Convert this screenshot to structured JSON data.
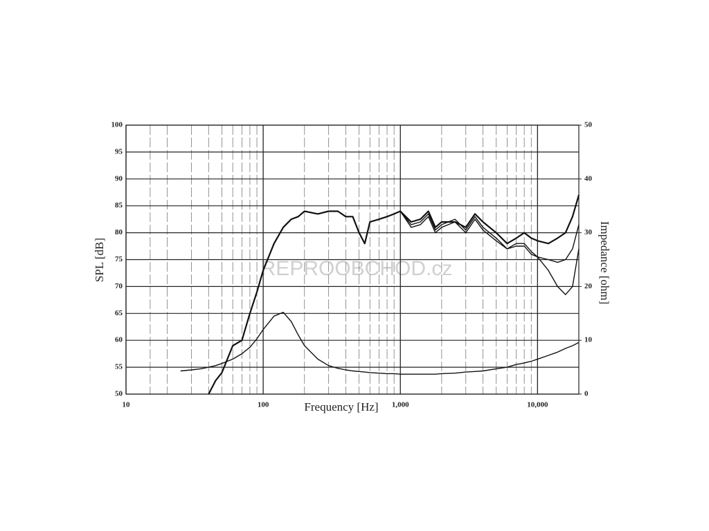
{
  "chart_data": {
    "type": "line",
    "x_label": "Frequency [Hz]",
    "y_label": "SPL [dB]",
    "y2_label": "Impedance [ohm]",
    "watermark": "REPROOBCHOD.cz",
    "xscale": "log",
    "grid": true,
    "xlim": [
      10,
      20000
    ],
    "xticks": [
      10,
      100,
      {
        "value": 1000,
        "label": "1,000"
      },
      {
        "value": 10000,
        "label": "10,000"
      }
    ],
    "x_minor_ticks": [
      15,
      20,
      30,
      40,
      50,
      60,
      70,
      80,
      90,
      200,
      300,
      400,
      500,
      600,
      700,
      800,
      900,
      2000,
      3000,
      4000,
      5000,
      6000,
      7000,
      8000,
      9000
    ],
    "ylim": [
      50,
      100
    ],
    "yticks": [
      50,
      55,
      60,
      65,
      70,
      75,
      80,
      85,
      90,
      95,
      100
    ],
    "y2lim": [
      0,
      50
    ],
    "y2ticks": [
      0,
      10,
      20,
      30,
      40,
      50
    ],
    "x": [
      20,
      25,
      30,
      35,
      40,
      45,
      50,
      60,
      70,
      80,
      90,
      100,
      120,
      140,
      160,
      180,
      200,
      250,
      300,
      350,
      400,
      450,
      500,
      550,
      600,
      700,
      800,
      900,
      1000,
      1200,
      1400,
      1600,
      1800,
      2000,
      2500,
      3000,
      3500,
      4000,
      5000,
      6000,
      7000,
      8000,
      9000,
      10000,
      12000,
      14000,
      16000,
      18000,
      20000
    ],
    "series": [
      {
        "color": "#111111",
        "width": 2.2,
        "values": [
          null,
          null,
          null,
          null,
          50,
          52.5,
          54,
          59,
          60,
          65,
          69,
          73,
          78,
          81,
          82.5,
          83,
          84,
          83.5,
          84,
          84,
          83,
          83,
          80,
          78,
          82,
          82.5,
          83,
          83.5,
          84,
          82,
          82.5,
          84,
          81,
          82,
          82,
          81,
          83.5,
          82,
          80,
          78,
          79,
          80,
          79,
          78.5,
          78,
          79,
          80,
          83,
          87
        ]
      },
      {
        "color": "#111111",
        "width": 1.4,
        "values": [
          null,
          null,
          null,
          null,
          null,
          null,
          null,
          null,
          null,
          null,
          null,
          null,
          null,
          null,
          null,
          null,
          null,
          null,
          null,
          null,
          null,
          null,
          null,
          null,
          null,
          null,
          null,
          null,
          84,
          81.5,
          82,
          83.5,
          80.5,
          81.5,
          82.5,
          80.5,
          83,
          81,
          79,
          77,
          77.5,
          77.5,
          76,
          75.5,
          75,
          74.5,
          75,
          77,
          81.5
        ]
      },
      {
        "color": "#111111",
        "width": 1.4,
        "values": [
          null,
          null,
          null,
          null,
          null,
          null,
          null,
          null,
          null,
          null,
          null,
          null,
          null,
          null,
          null,
          null,
          null,
          null,
          null,
          null,
          null,
          null,
          null,
          null,
          null,
          null,
          null,
          null,
          84,
          81,
          81.5,
          83,
          80,
          81,
          82,
          80,
          82.5,
          80.5,
          78.5,
          77,
          78,
          78,
          76.5,
          75.5,
          73,
          70,
          68.5,
          70,
          77
        ]
      },
      {
        "color": "#111111",
        "width": 1.4,
        "axis": "y2",
        "values": [
          null,
          4.3,
          4.5,
          4.7,
          5,
          5.3,
          5.7,
          6.5,
          7.5,
          8.7,
          10.3,
          12,
          14.5,
          15.2,
          13.5,
          11,
          9,
          6.5,
          5.3,
          4.8,
          4.5,
          4.3,
          4.2,
          4.1,
          4,
          3.9,
          3.8,
          3.8,
          3.7,
          3.7,
          3.7,
          3.7,
          3.7,
          3.8,
          3.9,
          4.1,
          4.2,
          4.3,
          4.7,
          5,
          5.5,
          5.8,
          6.1,
          6.5,
          7.2,
          7.8,
          8.5,
          9,
          9.6
        ]
      }
    ]
  }
}
